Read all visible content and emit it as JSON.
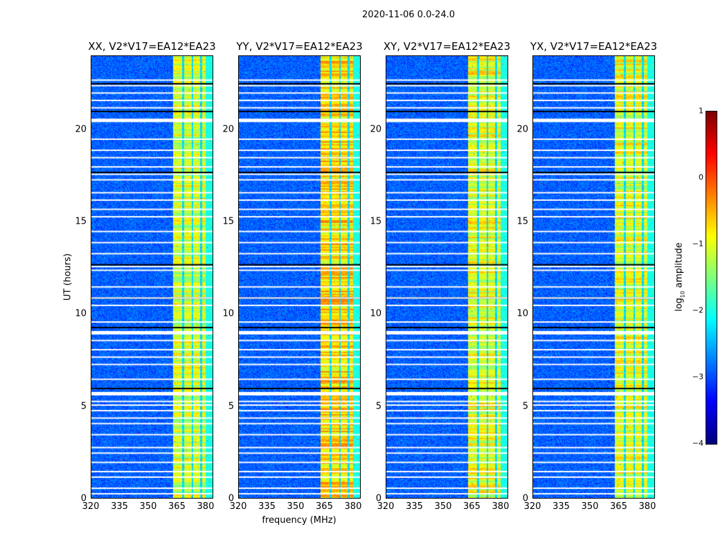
{
  "chart_data": {
    "type": "heatmap",
    "title": "2020-11-06 0.0-24.0",
    "xlabel": "frequency (MHz)",
    "ylabel": "UT (hours)",
    "xlim": [
      320,
      384
    ],
    "ylim": [
      0,
      24
    ],
    "xticks": [
      "320",
      "335",
      "350",
      "365",
      "380"
    ],
    "yticks": [
      "0",
      "5",
      "10",
      "15",
      "20"
    ],
    "panels": [
      {
        "title": "XX, V2*V17=EA12*EA23",
        "band_level": -1.1
      },
      {
        "title": "YY, V2*V17=EA12*EA23",
        "band_level": -0.7
      },
      {
        "title": "XY, V2*V17=EA12*EA23",
        "band_level": -1.0
      },
      {
        "title": "YX, V2*V17=EA12*EA23",
        "band_level": -1.0
      }
    ],
    "background_level": -2.9,
    "band_subbands_mhz": [
      [
        363,
        367.5
      ],
      [
        368.5,
        372.5
      ],
      [
        373.5,
        377
      ],
      [
        378,
        380
      ]
    ],
    "band_tail_mhz": [
      380,
      384
    ],
    "flagged_hours": [
      0.3,
      0.6,
      1.2,
      1.5,
      2.0,
      2.5,
      2.8,
      3.5,
      4.1,
      4.4,
      4.8,
      5.1,
      5.3,
      5.7,
      6.5,
      7.3,
      7.7,
      8.1,
      8.6,
      9.0,
      9.6,
      10.5,
      10.9,
      11.5,
      12.4,
      12.6,
      13.3,
      13.9,
      14.5,
      15.3,
      15.7,
      16.2,
      16.6,
      17.3,
      17.6,
      18.0,
      18.5,
      18.9,
      19.5,
      20.5,
      21.2,
      21.6,
      22.0,
      22.4,
      22.7
    ],
    "thick_flagged_hours": [
      5.7,
      9.0,
      20.5
    ],
    "dark_hours": [
      6.0,
      9.3,
      10.9,
      12.7,
      17.7,
      21.0,
      22.5
    ],
    "colorbar": {
      "label": "log10 amplitude",
      "label_main": "log",
      "label_sub": "10",
      "label_rest": " amplitude",
      "range": [
        -4,
        1
      ],
      "ticks": [
        "1",
        "0",
        "−1",
        "−2",
        "−3",
        "−4"
      ],
      "colormap": "jet"
    }
  }
}
